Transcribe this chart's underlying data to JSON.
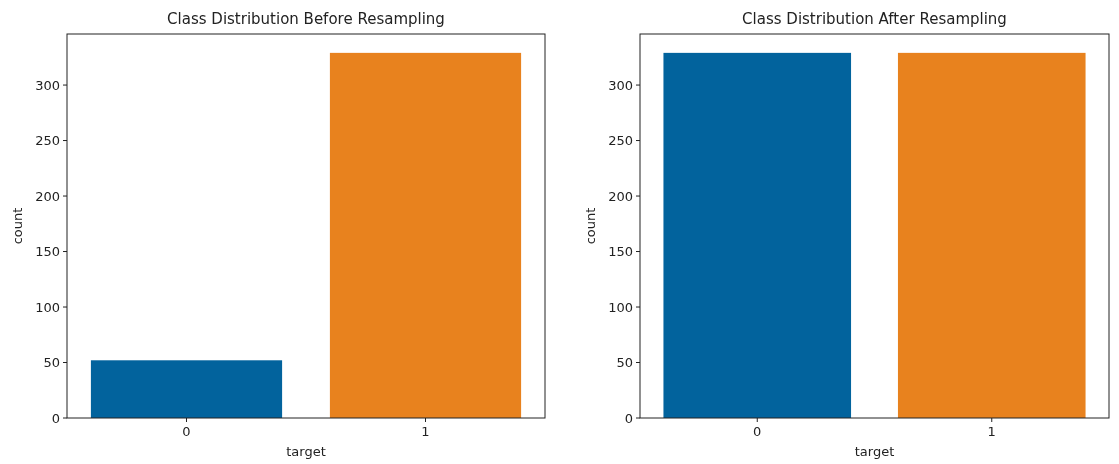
{
  "chart_data": [
    {
      "type": "bar",
      "title": "Class Distribution Before Resampling",
      "xlabel": "target",
      "ylabel": "count",
      "categories": [
        "0",
        "1"
      ],
      "values": [
        52,
        329
      ],
      "colors": [
        "#02639d",
        "#e8821e"
      ],
      "ylim": [
        0,
        346
      ],
      "yticks": [
        0,
        50,
        100,
        150,
        200,
        250,
        300
      ],
      "grid": false
    },
    {
      "type": "bar",
      "title": "Class Distribution After Resampling",
      "xlabel": "target",
      "ylabel": "count",
      "categories": [
        "0",
        "1"
      ],
      "values": [
        329,
        329
      ],
      "colors": [
        "#02639d",
        "#e8821e"
      ],
      "ylim": [
        0,
        346
      ],
      "yticks": [
        0,
        50,
        100,
        150,
        200,
        250,
        300
      ],
      "grid": false
    }
  ]
}
